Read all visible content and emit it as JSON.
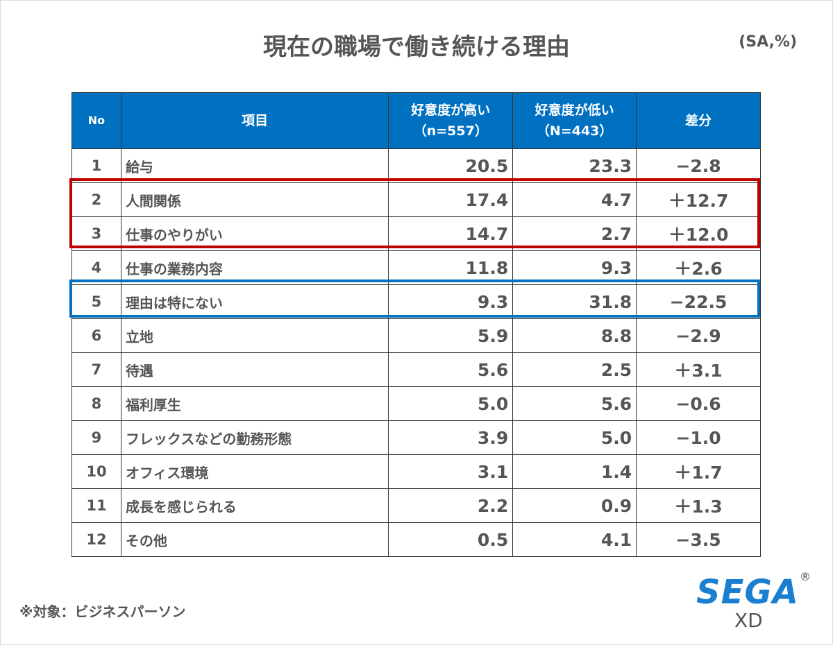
{
  "title": "現在の職場で働き続ける理由",
  "unit": "(SA,%)",
  "note": "※対象：ビジネスパーソン",
  "logo": {
    "brand": "SEGA",
    "registered": "®",
    "sub": "XD"
  },
  "colors": {
    "header": "#0070c0",
    "highlight_red": "#c00000",
    "highlight_blue": "#0070c0"
  },
  "chart_data": {
    "type": "table",
    "title": "現在の職場で働き続ける理由",
    "headers": {
      "no": "No",
      "item": "項目",
      "high": "好意度が高い",
      "high_n": "（n=557）",
      "low": "好意度が低い",
      "low_n": "（N=443）",
      "diff": "差分"
    },
    "rows": [
      {
        "no": "1",
        "item": "給与",
        "high": "20.5",
        "low": "23.3",
        "diff": "−2.8"
      },
      {
        "no": "2",
        "item": "人間関係",
        "high": "17.4",
        "low": "4.7",
        "diff": "＋12.7"
      },
      {
        "no": "3",
        "item": "仕事のやりがい",
        "high": "14.7",
        "low": "2.7",
        "diff": "＋12.0"
      },
      {
        "no": "4",
        "item": "仕事の業務内容",
        "high": "11.8",
        "low": "9.3",
        "diff": "＋2.6"
      },
      {
        "no": "5",
        "item": "理由は特にない",
        "high": "9.3",
        "low": "31.8",
        "diff": "−22.5"
      },
      {
        "no": "6",
        "item": "立地",
        "high": "5.9",
        "low": "8.8",
        "diff": "−2.9"
      },
      {
        "no": "7",
        "item": "待遇",
        "high": "5.6",
        "low": "2.5",
        "diff": "＋3.1"
      },
      {
        "no": "8",
        "item": "福利厚生",
        "high": "5.0",
        "low": "5.6",
        "diff": "−0.6"
      },
      {
        "no": "9",
        "item": "フレックスなどの勤務形態",
        "high": "3.9",
        "low": "5.0",
        "diff": "−1.0"
      },
      {
        "no": "10",
        "item": "オフィス環境",
        "high": "3.1",
        "low": "1.4",
        "diff": "＋1.7"
      },
      {
        "no": "11",
        "item": "成長を感じられる",
        "high": "2.2",
        "low": "0.9",
        "diff": "＋1.3"
      },
      {
        "no": "12",
        "item": "その他",
        "high": "0.5",
        "low": "4.1",
        "diff": "−3.5"
      }
    ]
  }
}
